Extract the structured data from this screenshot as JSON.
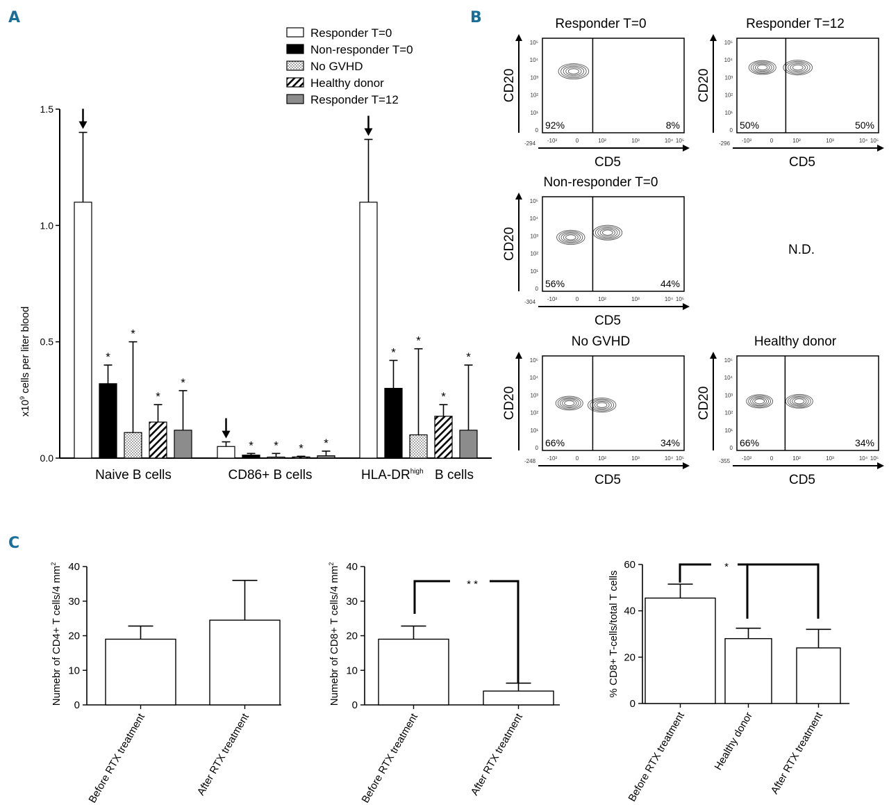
{
  "colors": {
    "accent": "#1a6f9a",
    "black": "#000000",
    "grey": "#8c8c8c"
  },
  "panel_labels": {
    "a": "A",
    "b": "B",
    "c": "C"
  },
  "panel_a": {
    "legend": [
      "Responder T=0",
      "Non-responder T=0",
      "No GVHD",
      "Healthy donor",
      "Responder T=12"
    ],
    "ylabel_parts": [
      "x10",
      "9",
      " cells per liter blood"
    ],
    "group_labels": [
      {
        "text": "Naive B cells"
      },
      {
        "text": "CD86+ B cells"
      },
      {
        "main": "HLA-DR",
        "sup": "high",
        "tail": "B cells"
      }
    ]
  },
  "panel_b": {
    "plots": [
      {
        "title": "Responder T=0",
        "left_pct": "92%",
        "right_pct": "8%",
        "left_tick": "-294",
        "xlabel": "CD5",
        "ylabel": "CD20"
      },
      {
        "title": "Responder T=12",
        "left_pct": "50%",
        "right_pct": "50%",
        "left_tick": "-296",
        "xlabel": "CD5",
        "ylabel": "CD20"
      },
      {
        "title": "Non-responder T=0",
        "left_pct": "56%",
        "right_pct": "44%",
        "left_tick": "-304",
        "xlabel": "CD5",
        "ylabel": "CD20"
      },
      {
        "title": "No GVHD",
        "left_pct": "66%",
        "right_pct": "34%",
        "left_tick": "-248",
        "xlabel": "CD5",
        "ylabel": "CD20"
      },
      {
        "title": "Healthy donor",
        "left_pct": "66%",
        "right_pct": "34%",
        "left_tick": "-355",
        "xlabel": "CD5",
        "ylabel": "CD20"
      }
    ],
    "nd_label": "N.D.",
    "x_ticks": [
      "-10²",
      "0",
      "10²",
      "10³",
      "10⁴",
      "10⁵"
    ],
    "y_ticks": [
      "0",
      "10¹",
      "10²",
      "10³",
      "10⁴",
      "10⁵"
    ]
  },
  "panel_c": {
    "c1_ylabel": "Numebr of CD4+ T cells/4 mm",
    "c2_ylabel": "Numebr of CD8+ T cells/4 mm",
    "ylabel_sup": "2",
    "c3_ylabel": "% CD8+ T-cells/total T cells",
    "sig_c2": "* *",
    "sig_c3": "*"
  },
  "chart_data": [
    {
      "type": "bar",
      "panel": "A",
      "categories": [
        "Naive B cells",
        "CD86+ B cells",
        "HLA-DRhigh B cells"
      ],
      "ylim": [
        0,
        1.5
      ],
      "yticks": [
        "0.0",
        "0.5",
        "1.0",
        "1.5"
      ],
      "series": [
        {
          "name": "Responder T=0",
          "values": [
            1.1,
            0.05,
            1.1
          ],
          "errors": [
            0.3,
            0.02,
            0.27
          ],
          "fill": "white",
          "star": [
            false,
            false,
            false
          ],
          "arrow": [
            true,
            true,
            true
          ]
        },
        {
          "name": "Non-responder T=0",
          "values": [
            0.32,
            0.013,
            0.3
          ],
          "errors": [
            0.08,
            0.007,
            0.12
          ],
          "fill": "black",
          "star": [
            true,
            true,
            true
          ]
        },
        {
          "name": "No GVHD",
          "values": [
            0.11,
            0.0,
            0.1
          ],
          "errors": [
            0.39,
            0.02,
            0.37
          ],
          "fill": "dots",
          "star": [
            true,
            true,
            true
          ]
        },
        {
          "name": "Healthy donor",
          "values": [
            0.155,
            0.005,
            0.18
          ],
          "errors": [
            0.075,
            0.003,
            0.05
          ],
          "fill": "hatch",
          "star": [
            true,
            true,
            true
          ]
        },
        {
          "name": "Responder T=12",
          "values": [
            0.12,
            0.01,
            0.12
          ],
          "errors": [
            0.17,
            0.02,
            0.28
          ],
          "fill": "grey",
          "star": [
            true,
            true,
            true
          ]
        }
      ]
    },
    {
      "type": "bar",
      "panel": "C-1",
      "categories": [
        "Before RTX treatment",
        "After RTX treatment"
      ],
      "values": [
        19,
        24.5
      ],
      "errors": [
        3.8,
        11.5
      ],
      "ylim": [
        0,
        40
      ],
      "yticks": [
        "0",
        "10",
        "20",
        "30",
        "40"
      ]
    },
    {
      "type": "bar",
      "panel": "C-2",
      "categories": [
        "Before RTX treatment",
        "After RTX treatment"
      ],
      "values": [
        19,
        4
      ],
      "errors": [
        3.8,
        2.3
      ],
      "ylim": [
        0,
        40
      ],
      "yticks": [
        "0",
        "10",
        "20",
        "30",
        "40"
      ]
    },
    {
      "type": "bar",
      "panel": "C-3",
      "categories": [
        "Before RTX treatment",
        "Healthy donor",
        "After RTX treatment"
      ],
      "values": [
        45.5,
        28,
        24
      ],
      "errors": [
        6,
        4.5,
        8
      ],
      "ylim": [
        0,
        60
      ],
      "yticks": [
        "0",
        "20",
        "40",
        "60"
      ]
    }
  ]
}
